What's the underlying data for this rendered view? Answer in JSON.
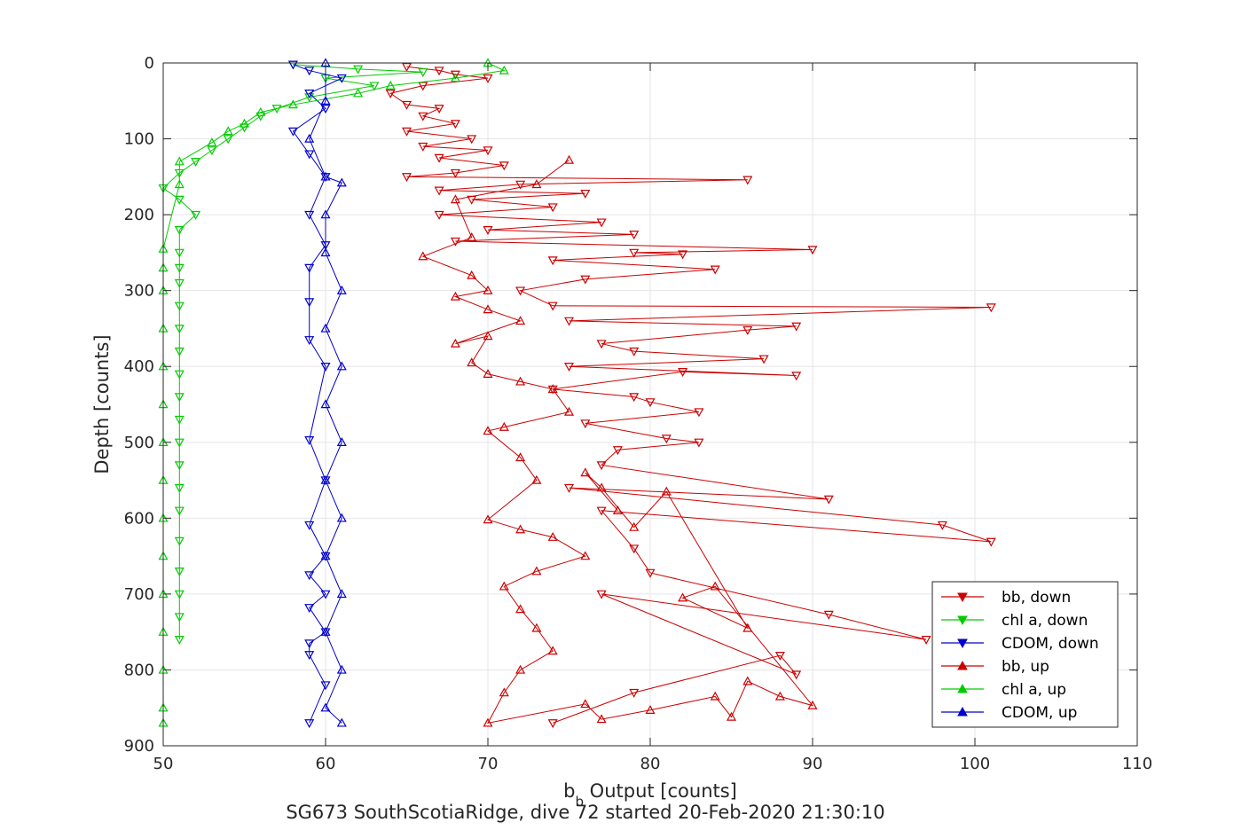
{
  "chart_data": {
    "type": "scatter",
    "xlabel_main": "b",
    "xlabel_sub": "b",
    "xlabel_rest": " Output [counts]",
    "ylabel": "Depth [counts]",
    "caption": "SG673 SouthScotiaRidge, dive 72 started 20-Feb-2020 21:30:10",
    "xlim": [
      50,
      110
    ],
    "ylim": [
      0,
      900
    ],
    "y_reversed": true,
    "grid": true,
    "xticks": [
      50,
      60,
      70,
      80,
      90,
      100,
      110
    ],
    "yticks": [
      0,
      100,
      200,
      300,
      400,
      500,
      600,
      700,
      800,
      900
    ],
    "legend_position": "lower-right",
    "series": [
      {
        "name": "bb, down",
        "color": "#cc0000",
        "marker": "triangle-down",
        "connected": true,
        "points": [
          [
            65,
            5
          ],
          [
            67,
            10
          ],
          [
            68,
            15
          ],
          [
            70,
            20
          ],
          [
            66,
            30
          ],
          [
            64,
            40
          ],
          [
            65,
            55
          ],
          [
            67,
            60
          ],
          [
            66,
            70
          ],
          [
            68,
            80
          ],
          [
            65,
            90
          ],
          [
            69,
            100
          ],
          [
            66,
            110
          ],
          [
            70,
            115
          ],
          [
            67,
            125
          ],
          [
            71,
            135
          ],
          [
            68,
            145
          ],
          [
            65,
            150
          ],
          [
            86,
            154
          ],
          [
            72,
            160
          ],
          [
            67,
            168
          ],
          [
            76,
            172
          ],
          [
            69,
            180
          ],
          [
            74,
            190
          ],
          [
            67,
            200
          ],
          [
            77,
            210
          ],
          [
            70,
            220
          ],
          [
            79,
            226
          ],
          [
            68,
            235
          ],
          [
            90,
            246
          ],
          [
            79,
            250
          ],
          [
            82,
            252
          ],
          [
            74,
            260
          ],
          [
            84,
            272
          ],
          [
            76,
            285
          ],
          [
            72,
            300
          ],
          [
            74,
            320
          ],
          [
            101,
            322
          ],
          [
            75,
            340
          ],
          [
            89,
            347
          ],
          [
            86,
            352
          ],
          [
            77,
            370
          ],
          [
            79,
            380
          ],
          [
            87,
            390
          ],
          [
            75,
            400
          ],
          [
            89,
            412
          ],
          [
            82,
            407
          ],
          [
            74,
            430
          ],
          [
            79,
            440
          ],
          [
            80,
            447
          ],
          [
            83,
            460
          ],
          [
            76,
            475
          ],
          [
            81,
            495
          ],
          [
            83,
            500
          ],
          [
            78,
            510
          ],
          [
            77,
            530
          ],
          [
            91,
            575
          ],
          [
            75,
            560
          ],
          [
            98,
            609
          ],
          [
            101,
            631
          ],
          [
            77,
            590
          ],
          [
            79,
            640
          ],
          [
            80,
            672
          ],
          [
            91,
            727
          ],
          [
            97,
            760
          ],
          [
            77,
            700
          ],
          [
            89,
            806
          ],
          [
            88,
            781
          ],
          [
            79,
            830
          ],
          [
            74,
            870
          ]
        ]
      },
      {
        "name": "chl a, down",
        "color": "#00cc00",
        "marker": "triangle-down",
        "connected": true,
        "points": [
          [
            58,
            2
          ],
          [
            62,
            8
          ],
          [
            66,
            12
          ],
          [
            60,
            20
          ],
          [
            63,
            30
          ],
          [
            59,
            45
          ],
          [
            57,
            60
          ],
          [
            56,
            70
          ],
          [
            55,
            85
          ],
          [
            54,
            100
          ],
          [
            53,
            115
          ],
          [
            52,
            130
          ],
          [
            51,
            145
          ],
          [
            50,
            165
          ],
          [
            51,
            180
          ],
          [
            52,
            200
          ],
          [
            51,
            220
          ],
          [
            51,
            250
          ],
          [
            51,
            270
          ],
          [
            51,
            290
          ],
          [
            51,
            320
          ],
          [
            51,
            350
          ],
          [
            51,
            380
          ],
          [
            51,
            410
          ],
          [
            51,
            440
          ],
          [
            51,
            470
          ],
          [
            51,
            500
          ],
          [
            51,
            530
          ],
          [
            51,
            560
          ],
          [
            51,
            590
          ],
          [
            51,
            630
          ],
          [
            51,
            670
          ],
          [
            51,
            700
          ],
          [
            51,
            730
          ],
          [
            51,
            760
          ]
        ]
      },
      {
        "name": "CDOM, down",
        "color": "#0000cc",
        "marker": "triangle-down",
        "connected": true,
        "points": [
          [
            58,
            2
          ],
          [
            59,
            10
          ],
          [
            61,
            20
          ],
          [
            59,
            40
          ],
          [
            60,
            60
          ],
          [
            58,
            90
          ],
          [
            59,
            120
          ],
          [
            60,
            150
          ],
          [
            59,
            200
          ],
          [
            60,
            240
          ],
          [
            59,
            270
          ],
          [
            59,
            315
          ],
          [
            59,
            365
          ],
          [
            60,
            400
          ],
          [
            59,
            497
          ],
          [
            60,
            550
          ],
          [
            59,
            609
          ],
          [
            60,
            650
          ],
          [
            59,
            675
          ],
          [
            60,
            700
          ],
          [
            59,
            718
          ],
          [
            60,
            750
          ],
          [
            59,
            765
          ],
          [
            59,
            780
          ],
          [
            60,
            820
          ],
          [
            59,
            870
          ]
        ]
      },
      {
        "name": "bb, up",
        "color": "#cc0000",
        "marker": "triangle-up",
        "connected": true,
        "points": [
          [
            75,
            128
          ],
          [
            73,
            160
          ],
          [
            68,
            180
          ],
          [
            69,
            230
          ],
          [
            66,
            255
          ],
          [
            69,
            280
          ],
          [
            70,
            300
          ],
          [
            68,
            308
          ],
          [
            70,
            325
          ],
          [
            72,
            340
          ],
          [
            68,
            370
          ],
          [
            70,
            360
          ],
          [
            69,
            395
          ],
          [
            70,
            410
          ],
          [
            72,
            420
          ],
          [
            74,
            430
          ],
          [
            75,
            460
          ],
          [
            71,
            480
          ],
          [
            70,
            485
          ],
          [
            72,
            520
          ],
          [
            73,
            550
          ],
          [
            70,
            602
          ],
          [
            72,
            615
          ],
          [
            74,
            625
          ],
          [
            76,
            650
          ],
          [
            73,
            670
          ],
          [
            71,
            690
          ],
          [
            72,
            720
          ],
          [
            73,
            745
          ],
          [
            74,
            775
          ],
          [
            72,
            800
          ],
          [
            71,
            830
          ],
          [
            70,
            870
          ],
          [
            76,
            845
          ],
          [
            77,
            865
          ],
          [
            80,
            853
          ],
          [
            84,
            835
          ],
          [
            85,
            862
          ],
          [
            86,
            815
          ],
          [
            88,
            835
          ],
          [
            90,
            847
          ],
          [
            84,
            690
          ],
          [
            82,
            705
          ],
          [
            86,
            745
          ],
          [
            81,
            565
          ],
          [
            79,
            612
          ],
          [
            77,
            560
          ],
          [
            76,
            540
          ],
          [
            78,
            590
          ]
        ]
      },
      {
        "name": "chl a, up",
        "color": "#00cc00",
        "marker": "triangle-up",
        "connected": true,
        "points": [
          [
            70,
            0
          ],
          [
            71,
            10
          ],
          [
            68,
            20
          ],
          [
            64,
            30
          ],
          [
            62,
            40
          ],
          [
            58,
            55
          ],
          [
            56,
            65
          ],
          [
            55,
            80
          ],
          [
            54,
            90
          ],
          [
            53,
            105
          ],
          [
            51,
            130
          ],
          [
            51,
            160
          ],
          [
            50,
            245
          ],
          [
            50,
            270
          ],
          [
            50,
            300
          ],
          [
            50,
            350
          ],
          [
            50,
            400
          ],
          [
            50,
            450
          ],
          [
            50,
            500
          ],
          [
            50,
            550
          ],
          [
            50,
            600
          ],
          [
            50,
            650
          ],
          [
            50,
            700
          ],
          [
            50,
            750
          ],
          [
            50,
            800
          ],
          [
            50,
            850
          ],
          [
            50,
            870
          ]
        ]
      },
      {
        "name": "CDOM, up",
        "color": "#0000cc",
        "marker": "triangle-up",
        "connected": true,
        "points": [
          [
            60,
            0
          ],
          [
            60,
            50
          ],
          [
            59,
            100
          ],
          [
            60,
            150
          ],
          [
            61,
            158
          ],
          [
            60,
            200
          ],
          [
            60,
            250
          ],
          [
            61,
            300
          ],
          [
            60,
            350
          ],
          [
            61,
            400
          ],
          [
            60,
            450
          ],
          [
            61,
            500
          ],
          [
            60,
            550
          ],
          [
            61,
            600
          ],
          [
            60,
            650
          ],
          [
            61,
            700
          ],
          [
            60,
            750
          ],
          [
            61,
            800
          ],
          [
            60,
            850
          ],
          [
            61,
            870
          ]
        ]
      }
    ]
  }
}
